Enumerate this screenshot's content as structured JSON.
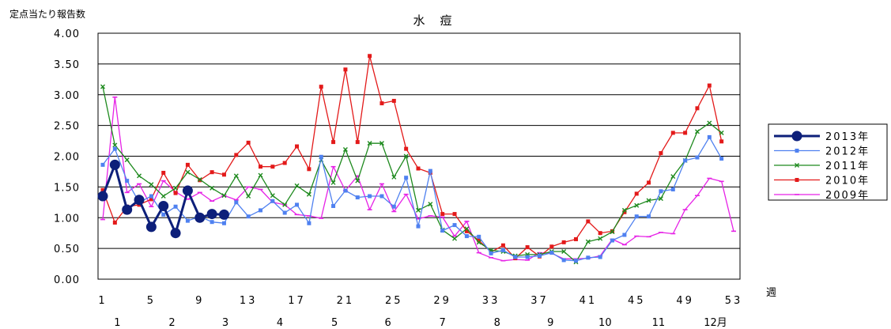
{
  "chart_data": {
    "type": "line",
    "title": "水　痘",
    "ylabel": "定点当たり報告数",
    "xlabel": "週",
    "ylim": [
      0,
      4
    ],
    "yticks": [
      "0.00",
      "0.50",
      "1.00",
      "1.50",
      "2.00",
      "2.50",
      "3.00",
      "3.50",
      "4.00"
    ],
    "x_week_ticks": [
      "1",
      "5",
      "9",
      "13",
      "17",
      "21",
      "25",
      "29",
      "33",
      "37",
      "41",
      "45",
      "49",
      "53"
    ],
    "month_labels": [
      {
        "label": "1",
        "week": 2.2
      },
      {
        "label": "2",
        "week": 6.7
      },
      {
        "label": "3",
        "week": 11.1
      },
      {
        "label": "4",
        "week": 15.6
      },
      {
        "label": "5",
        "week": 20.1
      },
      {
        "label": "6",
        "week": 24.5
      },
      {
        "label": "7",
        "week": 29.0
      },
      {
        "label": "8",
        "week": 33.5
      },
      {
        "label": "9",
        "week": 37.9
      },
      {
        "label": "10",
        "week": 42.4
      },
      {
        "label": "11",
        "week": 46.8
      },
      {
        "label": "12月",
        "week": 51.5
      }
    ],
    "grid": true,
    "legend_position": "right",
    "series": [
      {
        "name": "2013年",
        "color": "#0d1f7a",
        "marker": "circle",
        "values": [
          1.35,
          1.86,
          1.13,
          1.29,
          0.85,
          1.19,
          0.75,
          1.44,
          1.0,
          1.06,
          1.05
        ]
      },
      {
        "name": "2012年",
        "color": "#4f81f0",
        "marker": "square",
        "values": [
          1.86,
          2.12,
          1.6,
          1.25,
          1.35,
          1.05,
          1.18,
          0.95,
          1.02,
          0.93,
          0.91,
          1.25,
          1.02,
          1.12,
          1.27,
          1.08,
          1.21,
          0.91,
          1.99,
          1.19,
          1.44,
          1.33,
          1.35,
          1.35,
          1.18,
          1.65,
          0.86,
          1.76,
          0.79,
          0.88,
          0.7,
          0.69,
          0.42,
          0.47,
          0.36,
          0.36,
          0.38,
          0.43,
          0.31,
          0.3,
          0.35,
          0.36,
          0.63,
          0.72,
          1.02,
          1.02,
          1.43,
          1.46,
          1.93,
          1.98,
          2.31,
          1.96
        ]
      },
      {
        "name": "2011年",
        "color": "#1e8a1e",
        "marker": "x",
        "values": [
          3.13,
          2.18,
          1.94,
          1.68,
          1.54,
          1.35,
          1.48,
          1.74,
          1.62,
          1.48,
          1.36,
          1.68,
          1.35,
          1.69,
          1.36,
          1.21,
          1.52,
          1.38,
          1.94,
          1.57,
          2.11,
          1.6,
          2.21,
          2.21,
          1.66,
          2.0,
          1.12,
          1.22,
          0.8,
          0.66,
          0.82,
          0.6,
          0.47,
          0.45,
          0.38,
          0.4,
          0.4,
          0.45,
          0.45,
          0.28,
          0.61,
          0.66,
          0.77,
          1.12,
          1.2,
          1.28,
          1.31,
          1.67,
          1.93,
          2.4,
          2.54,
          2.38
        ]
      },
      {
        "name": "2010年",
        "color": "#e31a1a",
        "marker": "square",
        "values": [
          1.45,
          0.92,
          1.18,
          1.21,
          1.3,
          1.73,
          1.4,
          1.86,
          1.61,
          1.74,
          1.7,
          2.02,
          2.22,
          1.83,
          1.83,
          1.89,
          2.16,
          1.79,
          3.13,
          2.23,
          3.41,
          2.23,
          3.63,
          2.86,
          2.9,
          2.12,
          1.8,
          1.73,
          1.06,
          1.06,
          0.78,
          0.63,
          0.44,
          0.55,
          0.34,
          0.52,
          0.37,
          0.53,
          0.6,
          0.65,
          0.94,
          0.75,
          0.78,
          1.09,
          1.39,
          1.57,
          2.05,
          2.38,
          2.38,
          2.78,
          3.15,
          2.24
        ]
      },
      {
        "name": "2009年",
        "color": "#e622e6",
        "marker": "dash",
        "values": [
          0.97,
          2.96,
          1.41,
          1.55,
          1.18,
          1.6,
          1.42,
          1.3,
          1.41,
          1.27,
          1.36,
          1.29,
          1.5,
          1.46,
          1.25,
          1.21,
          1.05,
          1.03,
          0.99,
          1.83,
          1.44,
          1.68,
          1.13,
          1.55,
          1.1,
          1.38,
          0.98,
          1.03,
          1.01,
          0.7,
          0.94,
          0.43,
          0.35,
          0.3,
          0.32,
          0.31,
          0.43,
          0.42,
          0.33,
          0.33,
          0.34,
          0.38,
          0.65,
          0.56,
          0.7,
          0.69,
          0.76,
          0.74,
          1.13,
          1.36,
          1.64,
          1.59,
          0.78
        ]
      }
    ]
  }
}
